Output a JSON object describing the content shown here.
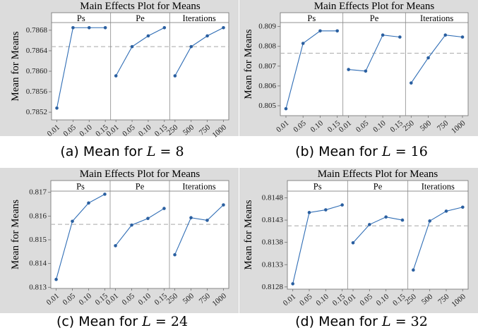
{
  "chart_data": [
    {
      "type": "line",
      "title": "Main Effects Plot for Means",
      "ylabel": "Mean for Means",
      "caption_prefix": "(a) Mean for",
      "caption_var": "L",
      "caption_eq": "= 8",
      "ylim": [
        0.78505,
        0.78695
      ],
      "yticks": [
        0.7852,
        0.7856,
        0.786,
        0.7864,
        0.7868
      ],
      "ytick_labels": [
        "0.7852",
        "0.7856",
        "0.7860",
        "0.7864",
        "0.7868"
      ],
      "ref_line": 0.78648,
      "panels": [
        {
          "name": "Ps",
          "categories": [
            "0.01",
            "0.05",
            "0.10",
            "0.15"
          ],
          "values": [
            0.78528,
            0.78685,
            0.78685,
            0.78685
          ]
        },
        {
          "name": "Pe",
          "categories": [
            "0.01",
            "0.05",
            "0.10",
            "0.15"
          ],
          "values": [
            0.78591,
            0.78648,
            0.78669,
            0.78685
          ]
        },
        {
          "name": "Iterations",
          "categories": [
            "250",
            "500",
            "750",
            "1000"
          ],
          "values": [
            0.78591,
            0.78648,
            0.78669,
            0.78685
          ]
        }
      ]
    },
    {
      "type": "line",
      "title": "Main Effects Plot for Means",
      "ylabel": "Mean for Means",
      "caption_prefix": "(b) Mean for",
      "caption_var": "L",
      "caption_eq": "= 16",
      "ylim": [
        0.8045,
        0.8092
      ],
      "yticks": [
        0.805,
        0.806,
        0.807,
        0.808,
        0.809
      ],
      "ytick_labels": [
        "0.805",
        "0.806",
        "0.807",
        "0.808",
        "0.809"
      ],
      "ref_line": 0.80765,
      "panels": [
        {
          "name": "Ps",
          "categories": [
            "0.01",
            "0.05",
            "0.10",
            "0.15"
          ],
          "values": [
            0.80485,
            0.80815,
            0.80878,
            0.80878
          ]
        },
        {
          "name": "Pe",
          "categories": [
            "0.01",
            "0.05",
            "0.10",
            "0.15"
          ],
          "values": [
            0.80683,
            0.80675,
            0.80857,
            0.80847
          ]
        },
        {
          "name": "Iterations",
          "categories": [
            "250",
            "500",
            "750",
            "1000"
          ],
          "values": [
            0.80615,
            0.80742,
            0.80857,
            0.80847
          ]
        }
      ]
    },
    {
      "type": "line",
      "title": "Main Effects Plot for Means",
      "ylabel": "Mean for Means",
      "caption_prefix": "(c) Mean for",
      "caption_var": "L",
      "caption_eq": "= 24",
      "ylim": [
        0.81295,
        0.81705
      ],
      "yticks": [
        0.813,
        0.814,
        0.815,
        0.816,
        0.817
      ],
      "ytick_labels": [
        "0.813",
        "0.814",
        "0.815",
        "0.816",
        "0.817"
      ],
      "ref_line": 0.81565,
      "panels": [
        {
          "name": "Ps",
          "categories": [
            "0.01",
            "0.05",
            "0.10",
            "0.15"
          ],
          "values": [
            0.81333,
            0.81578,
            0.81655,
            0.81692
          ]
        },
        {
          "name": "Pe",
          "categories": [
            "0.01",
            "0.05",
            "0.10",
            "0.15"
          ],
          "values": [
            0.81475,
            0.81562,
            0.8159,
            0.81632
          ]
        },
        {
          "name": "Iterations",
          "categories": [
            "250",
            "500",
            "750",
            "1000"
          ],
          "values": [
            0.81437,
            0.81593,
            0.81582,
            0.81647
          ]
        }
      ]
    },
    {
      "type": "line",
      "title": "Main Effects Plot for Means",
      "ylabel": "Mean for Means",
      "caption_prefix": "(d) Mean for",
      "caption_var": "L",
      "caption_eq": "= 32",
      "ylim": [
        0.81275,
        0.81495
      ],
      "yticks": [
        0.8128,
        0.8133,
        0.8138,
        0.8143,
        0.8148
      ],
      "ytick_labels": [
        "0.8128",
        "0.8133",
        "0.8138",
        "0.8143",
        "0.8148"
      ],
      "ref_line": 0.81417,
      "panels": [
        {
          "name": "Ps",
          "categories": [
            "0.01",
            "0.05",
            "0.10",
            "0.15"
          ],
          "values": [
            0.81287,
            0.81447,
            0.81453,
            0.81464
          ]
        },
        {
          "name": "Pe",
          "categories": [
            "0.01",
            "0.05",
            "0.10",
            "0.15"
          ],
          "values": [
            0.81379,
            0.8142,
            0.81437,
            0.8143
          ]
        },
        {
          "name": "Iterations",
          "categories": [
            "250",
            "500",
            "750",
            "1000"
          ],
          "values": [
            0.81318,
            0.81428,
            0.8145,
            0.81459
          ]
        }
      ]
    }
  ],
  "colors": {
    "line": "#2f6db5",
    "marker": "#2a5fa0",
    "ref_line": "#b8b8b8",
    "header_bg": "#dcdcdc",
    "axis": "#6e6e6e",
    "divider": "#8a8a8a"
  }
}
